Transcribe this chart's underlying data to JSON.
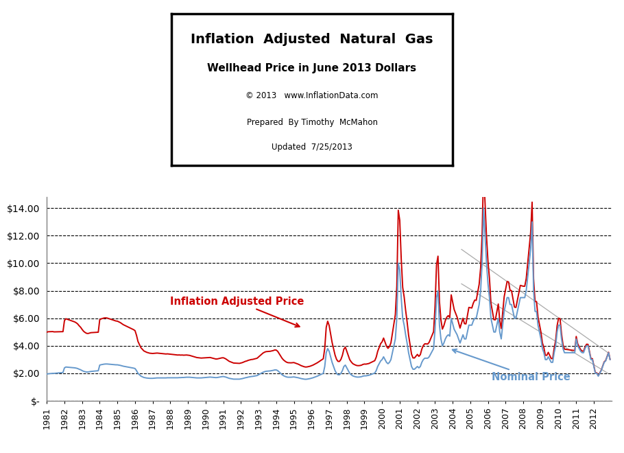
{
  "title_line1": "Inflation  Adjusted  Natural  Gas",
  "title_line2": "Wellhead Price in June 2013 Dollars",
  "title_line3": "© 2013   www.InflationData.com",
  "title_line4": "Prepared  By Timothy  McMahon",
  "title_line5": "Updated  7/25/2013",
  "inflation_color": "#CC0000",
  "nominal_color": "#6699CC",
  "annotation_inflation": "Inflation Adjusted Price",
  "annotation_nominal": "Nominal Price",
  "background_color": "#FFFFFF",
  "ytick_labels": [
    "$-",
    "$2.00",
    "$4.00",
    "$6.00",
    "$8.00",
    "$10.00",
    "$12.00",
    "$14.00"
  ],
  "ytick_values": [
    0,
    2,
    4,
    6,
    8,
    10,
    12,
    14
  ],
  "ylim": [
    0,
    14.8
  ],
  "xlim_start": 1981,
  "xlim_end": 2013.0
}
